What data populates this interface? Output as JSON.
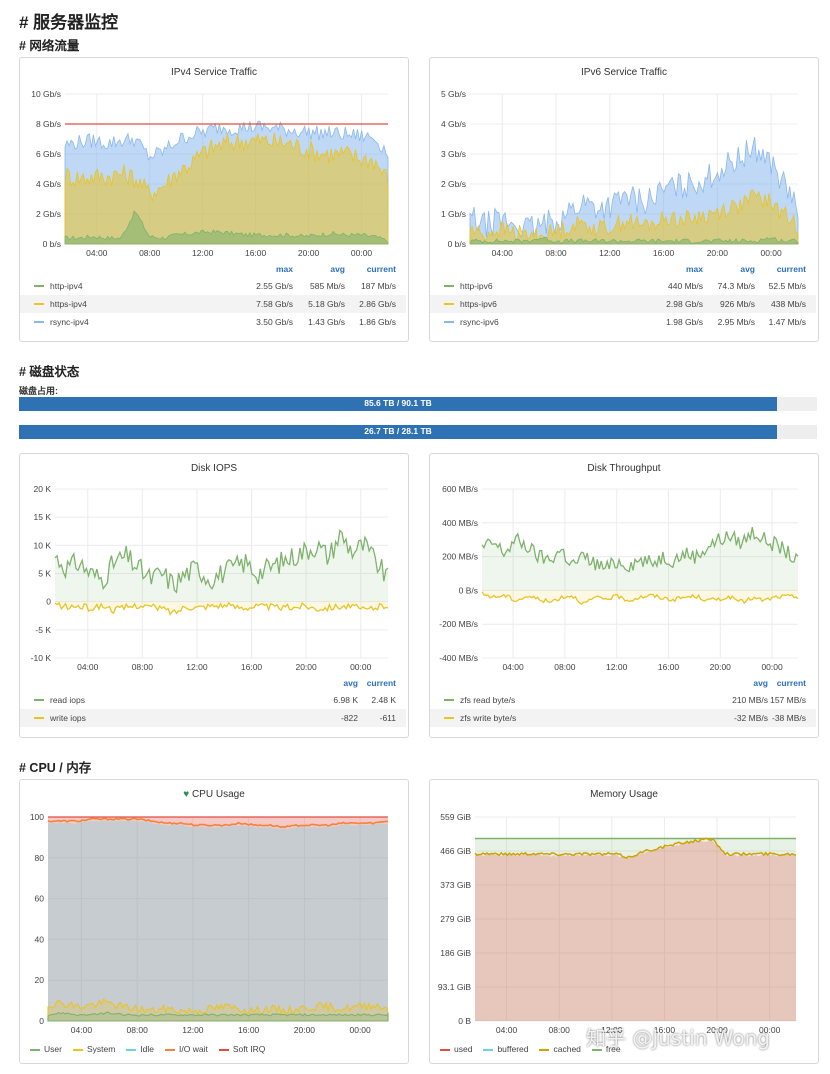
{
  "page": {
    "title": "# 服务器监控"
  },
  "sections": {
    "network": "# 网络流量",
    "disk": "# 磁盘状态",
    "cpu": "# CPU / 内存"
  },
  "legend_headers": {
    "max": "max",
    "avg": "avg",
    "current": "current"
  },
  "disk_usage": {
    "label": "磁盘占用:",
    "bars": [
      {
        "text": "85.6 TB / 90.1 TB",
        "fraction": 0.95
      },
      {
        "text": "26.7 TB / 28.1 TB",
        "fraction": 0.95
      }
    ]
  },
  "watermark": "知乎 @Justin Wong",
  "chart_data": [
    {
      "type": "area",
      "title": "IPv4 Service Traffic",
      "x_ticks": [
        "04:00",
        "08:00",
        "12:00",
        "16:00",
        "20:00",
        "00:00"
      ],
      "y_ticks": [
        "10 Gb/s",
        "8 Gb/s",
        "6 Gb/s",
        "4 Gb/s",
        "2 Gb/s",
        "0 b/s"
      ],
      "ylim": [
        0,
        10
      ],
      "threshold": 8,
      "series": [
        {
          "name": "http-ipv4",
          "color": "#7eb26d",
          "max": "2.55 Gb/s",
          "avg": "585 Mb/s",
          "current": "187 Mb/s",
          "values": [
            0.4,
            0.4,
            0.5,
            0.4,
            0.4,
            2.2,
            0.5,
            0.4,
            0.6,
            0.7,
            0.8,
            0.8,
            0.7,
            0.6,
            0.6,
            0.6,
            0.6,
            0.5,
            0.6,
            0.7,
            0.6,
            0.6,
            0.5,
            0.2
          ]
        },
        {
          "name": "https-ipv4",
          "color": "#eac324",
          "max": "7.58 Gb/s",
          "avg": "5.18 Gb/s",
          "current": "2.86 Gb/s",
          "values": [
            4.6,
            4.4,
            4.5,
            4.5,
            4.7,
            4.4,
            3.4,
            3.9,
            4.8,
            5.4,
            6.2,
            6.6,
            6.8,
            6.9,
            6.9,
            6.8,
            6.7,
            6.4,
            6.1,
            6.0,
            6.0,
            5.7,
            5.6,
            4.3
          ]
        },
        {
          "name": "rsync-ipv4",
          "color": "#8ab8ec",
          "max": "3.50 Gb/s",
          "avg": "1.43 Gb/s",
          "current": "1.86 Gb/s",
          "values": [
            6.6,
            6.8,
            6.9,
            6.7,
            6.9,
            7.0,
            5.8,
            6.2,
            6.9,
            7.3,
            7.5,
            7.8,
            7.7,
            7.8,
            7.8,
            7.7,
            7.6,
            7.5,
            7.4,
            7.4,
            7.3,
            7.2,
            7.1,
            6.1
          ]
        }
      ]
    },
    {
      "type": "area",
      "title": "IPv6 Service Traffic",
      "x_ticks": [
        "04:00",
        "08:00",
        "12:00",
        "16:00",
        "20:00",
        "00:00"
      ],
      "y_ticks": [
        "5 Gb/s",
        "4 Gb/s",
        "3 Gb/s",
        "2 Gb/s",
        "1 Gb/s",
        "0 b/s"
      ],
      "ylim": [
        0,
        5
      ],
      "series": [
        {
          "name": "http-ipv6",
          "color": "#7eb26d",
          "max": "440 Mb/s",
          "avg": "74.3 Mb/s",
          "current": "52.5 Mb/s",
          "values": [
            0.1,
            0.1,
            0.1,
            0.1,
            0.1,
            0.2,
            0.1,
            0.1,
            0.1,
            0.1,
            0.1,
            0.1,
            0.1,
            0.1,
            0.1,
            0.1,
            0.1,
            0.1,
            0.1,
            0.1,
            0.1,
            0.2,
            0.1,
            0.1
          ]
        },
        {
          "name": "https-ipv6",
          "color": "#eac324",
          "max": "2.98 Gb/s",
          "avg": "926 Mb/s",
          "current": "438 Mb/s",
          "values": [
            0.5,
            0.3,
            0.5,
            0.4,
            0.3,
            0.3,
            0.4,
            0.6,
            0.7,
            0.5,
            0.6,
            0.8,
            0.6,
            0.7,
            0.9,
            0.8,
            0.9,
            1.0,
            1.2,
            1.3,
            1.6,
            1.4,
            1.0,
            0.6
          ]
        },
        {
          "name": "rsync-ipv6",
          "color": "#8ab8ec",
          "max": "1.98 Gb/s",
          "avg": "2.95 Mb/s",
          "current": "1.47 Mb/s",
          "values": [
            0.9,
            0.6,
            0.8,
            0.7,
            0.5,
            0.6,
            0.8,
            1.1,
            1.4,
            1.2,
            1.3,
            1.6,
            1.4,
            1.6,
            1.9,
            1.9,
            2.1,
            2.3,
            2.6,
            2.9,
            3.2,
            2.8,
            2.0,
            1.2
          ]
        }
      ]
    },
    {
      "type": "line",
      "title": "Disk IOPS",
      "x_ticks": [
        "04:00",
        "08:00",
        "12:00",
        "16:00",
        "20:00",
        "00:00"
      ],
      "y_ticks": [
        "20 K",
        "15 K",
        "10 K",
        "5 K",
        "0",
        "-5 K",
        "-10 K"
      ],
      "ylim": [
        -10,
        20
      ],
      "series": [
        {
          "name": "read iops",
          "color": "#7eb26d",
          "avg": "6.98 K",
          "current": "2.48 K",
          "values": [
            8,
            6,
            7,
            5,
            4,
            7,
            8,
            6,
            4,
            5,
            3,
            5,
            6,
            4,
            5,
            6,
            7,
            5,
            6,
            7,
            8,
            9,
            10,
            8,
            12,
            9,
            10,
            7,
            4
          ]
        },
        {
          "name": "write iops",
          "color": "#eac324",
          "avg": "-822",
          "current": "-611",
          "values": [
            -0.5,
            -1,
            -0.8,
            -1.2,
            -0.7,
            -1.5,
            -1,
            -0.6,
            -0.9,
            -1.2,
            -2,
            -0.8,
            -1,
            -0.7,
            -0.6,
            -0.9,
            -1,
            -0.8,
            -0.9,
            -1.1,
            -1,
            -0.7,
            -1.2,
            -1,
            -0.8,
            -0.9,
            -1.5,
            -1,
            -0.6
          ]
        }
      ]
    },
    {
      "type": "line",
      "title": "Disk Throughput",
      "x_ticks": [
        "04:00",
        "08:00",
        "12:00",
        "16:00",
        "20:00",
        "00:00"
      ],
      "y_ticks": [
        "600 MB/s",
        "400 MB/s",
        "200 MB/s",
        "0 B/s",
        "-200 MB/s",
        "-400 MB/s"
      ],
      "ylim": [
        -400,
        600
      ],
      "series": [
        {
          "name": "zfs read byte/s",
          "color": "#7eb26d",
          "avg": "210 MB/s",
          "current": "157 MB/s",
          "values": [
            250,
            280,
            220,
            300,
            260,
            200,
            180,
            240,
            150,
            200,
            160,
            130,
            170,
            150,
            180,
            160,
            200,
            180,
            220,
            200,
            260,
            300,
            320,
            280,
            350,
            300,
            270,
            230,
            160
          ]
        },
        {
          "name": "zfs write byte/s",
          "color": "#eac324",
          "avg": "-32 MB/s",
          "current": "-38 MB/s",
          "values": [
            -20,
            -40,
            -30,
            -60,
            -35,
            -50,
            -70,
            -40,
            -30,
            -80,
            -45,
            -50,
            -35,
            -60,
            -40,
            -30,
            -45,
            -55,
            -40,
            -35,
            -60,
            -50,
            -40,
            -70,
            -45,
            -60,
            -40,
            -35,
            -38
          ]
        }
      ]
    },
    {
      "type": "area",
      "title": "CPU Usage",
      "x_ticks": [
        "04:00",
        "08:00",
        "12:00",
        "16:00",
        "20:00",
        "00:00"
      ],
      "y_ticks": [
        "100",
        "80",
        "60",
        "40",
        "20",
        "0"
      ],
      "ylim": [
        0,
        100
      ],
      "series": [
        {
          "name": "User",
          "color": "#7eb26d",
          "values": [
            3,
            4,
            3,
            3,
            4,
            3,
            3,
            3,
            3,
            3,
            3,
            3,
            3,
            3,
            3,
            3,
            3,
            3,
            3,
            3,
            3,
            3,
            3,
            3
          ]
        },
        {
          "name": "System",
          "color": "#eac324",
          "values": [
            8,
            9,
            7,
            8,
            9,
            7,
            6,
            5,
            6,
            5,
            5,
            6,
            7,
            6,
            5,
            6,
            5,
            6,
            7,
            7,
            6,
            7,
            8,
            6
          ]
        },
        {
          "name": "Idle",
          "color": "#6ed0e0",
          "values": [
            97,
            97,
            97,
            98,
            98,
            98,
            98,
            97,
            96,
            96,
            95,
            95,
            95,
            96,
            95,
            95,
            94,
            95,
            95,
            95,
            96,
            96,
            96,
            97
          ]
        },
        {
          "name": "I/O wait",
          "color": "#ef843c",
          "values": [
            98,
            98,
            98,
            99,
            99,
            99,
            99,
            98,
            97,
            97,
            96,
            96,
            96,
            97,
            96,
            96,
            95,
            96,
            96,
            96,
            97,
            97,
            97,
            98
          ]
        },
        {
          "name": "Soft IRQ",
          "color": "#e24d42",
          "values": [
            100,
            100,
            100,
            100,
            100,
            100,
            100,
            100,
            100,
            100,
            100,
            100,
            100,
            100,
            100,
            100,
            100,
            100,
            100,
            100,
            100,
            100,
            100,
            100
          ]
        }
      ]
    },
    {
      "type": "area",
      "title": "Memory Usage",
      "x_ticks": [
        "04:00",
        "08:00",
        "12:00",
        "16:00",
        "20:00",
        "00:00"
      ],
      "y_ticks": [
        "559 GiB",
        "466 GiB",
        "373 GiB",
        "279 GiB",
        "186 GiB",
        "93.1 GiB",
        "0 B"
      ],
      "ylim": [
        0,
        559
      ],
      "series": [
        {
          "name": "used",
          "color": "#e24d42",
          "values": [
            455,
            456,
            454,
            455,
            456,
            455,
            454,
            455,
            455,
            454,
            455,
            445,
            460,
            470,
            478,
            486,
            492,
            496,
            455,
            454,
            455,
            455,
            454,
            455
          ]
        },
        {
          "name": "buffered",
          "color": "#6ed0e0",
          "values": [
            455,
            456,
            454,
            455,
            456,
            455,
            454,
            455,
            455,
            454,
            455,
            445,
            460,
            470,
            478,
            486,
            492,
            496,
            455,
            454,
            455,
            455,
            454,
            455
          ]
        },
        {
          "name": "cached",
          "color": "#cca300",
          "values": [
            458,
            459,
            457,
            458,
            459,
            458,
            457,
            458,
            458,
            457,
            458,
            448,
            463,
            473,
            481,
            489,
            495,
            499,
            458,
            457,
            458,
            458,
            457,
            458
          ]
        },
        {
          "name": "free",
          "color": "#7eb26d",
          "values": [
            500,
            500,
            500,
            500,
            500,
            500,
            500,
            500,
            500,
            500,
            500,
            500,
            500,
            500,
            500,
            500,
            500,
            500,
            500,
            500,
            500,
            500,
            500,
            500
          ]
        }
      ]
    }
  ]
}
